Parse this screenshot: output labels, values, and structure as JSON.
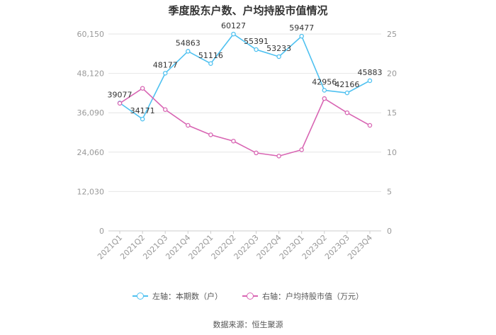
{
  "chart_data": {
    "type": "line",
    "title": "季度股东户数、户均持股市值情况",
    "categories": [
      "2021Q1",
      "2021Q2",
      "2021Q3",
      "2021Q4",
      "2022Q1",
      "2022Q2",
      "2022Q3",
      "2022Q4",
      "2023Q1",
      "2023Q2",
      "2023Q3",
      "2023Q4"
    ],
    "left_axis": {
      "ticks": [
        "0",
        "12,030",
        "24,060",
        "36,090",
        "48,120",
        "60,150"
      ],
      "range": [
        0,
        60150
      ]
    },
    "right_axis": {
      "ticks": [
        "0",
        "5",
        "10",
        "15",
        "20",
        "25"
      ],
      "range": [
        0,
        25
      ]
    },
    "series": [
      {
        "name": "左轴：本期数（户）",
        "axis": "left",
        "color": "#4fc1f0",
        "values": [
          39077,
          34171,
          48177,
          54863,
          51116,
          60127,
          55391,
          53233,
          59477,
          42956,
          42166,
          45883
        ],
        "labels": [
          "39077",
          "34171",
          "48177",
          "54863",
          "51116",
          "60127",
          "55391",
          "53233",
          "59477",
          "42956",
          "42166",
          "45883"
        ]
      },
      {
        "name": "右轴：户均持股市值（万元）",
        "axis": "right",
        "color": "#d865b3",
        "values": [
          16.2,
          18.1,
          15.4,
          13.4,
          12.2,
          11.4,
          9.9,
          9.5,
          10.3,
          16.8,
          15.0,
          13.4
        ]
      }
    ],
    "grid": true,
    "legend_position": "bottom"
  },
  "source_text": "数据来源：恒生聚源"
}
